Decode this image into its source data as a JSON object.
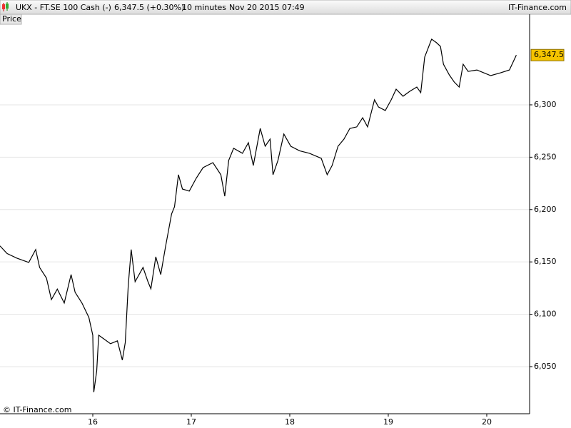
{
  "header": {
    "symbol": "UKX - FT.SE 100 Cash (-)",
    "quote": "6,347.5 (+0.30%)",
    "interval": "10 minutes",
    "timestamp": "Nov 20 2015 07:49",
    "brand": "IT-Finance.com"
  },
  "panel_label": "Price",
  "copyright": "© IT-Finance.com",
  "chart_data": {
    "type": "line",
    "x": [
      15.058,
      15.13,
      15.23,
      15.35,
      15.42,
      15.46,
      15.53,
      15.58,
      15.64,
      15.71,
      15.78,
      15.82,
      15.89,
      15.96,
      16.0,
      16.01,
      16.04,
      16.06,
      16.11,
      16.18,
      16.25,
      16.3,
      16.33,
      16.36,
      16.39,
      16.43,
      16.51,
      16.56,
      16.59,
      16.64,
      16.69,
      16.74,
      16.8,
      16.83,
      16.87,
      16.91,
      16.98,
      17.05,
      17.12,
      17.22,
      17.3,
      17.34,
      17.38,
      17.43,
      17.52,
      17.58,
      17.63,
      17.7,
      17.75,
      17.8,
      17.83,
      17.88,
      17.94,
      18.01,
      18.1,
      18.2,
      18.32,
      18.38,
      18.43,
      18.49,
      18.55,
      18.61,
      18.68,
      18.74,
      18.79,
      18.86,
      18.9,
      18.97,
      19.03,
      19.08,
      19.15,
      19.22,
      19.29,
      19.33,
      19.37,
      19.44,
      19.49,
      19.53,
      19.56,
      19.62,
      19.67,
      19.72,
      19.76,
      19.81,
      19.9,
      19.97,
      20.04,
      20.14,
      20.23,
      20.3
    ],
    "series": [
      {
        "name": "Price",
        "color": "#000000",
        "values": [
          6165.2,
          6158,
          6153.6,
          6149.5,
          6161.8,
          6144.7,
          6134.5,
          6114,
          6124,
          6110.7,
          6137.9,
          6121,
          6110.7,
          6097,
          6080,
          6025.6,
          6046,
          6080,
          6076.6,
          6071.9,
          6074.6,
          6056.2,
          6073,
          6127.7,
          6161.8,
          6131.1,
          6144.7,
          6131.1,
          6124.3,
          6154.9,
          6137.9,
          6165.2,
          6195.8,
          6202.6,
          6233.3,
          6219.6,
          6217.6,
          6229.9,
          6240,
          6244.8,
          6233.3,
          6212.8,
          6246.9,
          6258.5,
          6253.7,
          6263.9,
          6242.1,
          6277.5,
          6260.5,
          6267.3,
          6233.3,
          6246.9,
          6272.1,
          6260.5,
          6256.1,
          6253.7,
          6248.9,
          6233.3,
          6242.1,
          6260.5,
          6267.3,
          6277.5,
          6278.9,
          6287.7,
          6278.9,
          6304.8,
          6298,
          6294.6,
          6304.8,
          6315,
          6308.2,
          6313,
          6317,
          6311.6,
          6345.6,
          6362.7,
          6359.3,
          6355.8,
          6338.8,
          6328.6,
          6321.8,
          6317,
          6338.8,
          6331.9,
          6333.3,
          6330.6,
          6327.9,
          6330.6,
          6333.3,
          6347.5
        ]
      }
    ],
    "xlim": [
      15.058,
      20.435
    ],
    "ylim": [
      6005,
      6386.5
    ],
    "xticks": [
      16,
      17,
      18,
      19,
      20
    ],
    "yticks": [
      {
        "value": 6050,
        "label": "6,050"
      },
      {
        "value": 6100,
        "label": "6,100"
      },
      {
        "value": 6150,
        "label": "6,150"
      },
      {
        "value": 6200,
        "label": "6,200"
      },
      {
        "value": 6250,
        "label": "6,250"
      },
      {
        "value": 6300,
        "label": "6,300"
      }
    ],
    "grid": true,
    "price_tag": {
      "value": 6347.5,
      "label": "6,347.5",
      "color": "#f5c400"
    }
  }
}
